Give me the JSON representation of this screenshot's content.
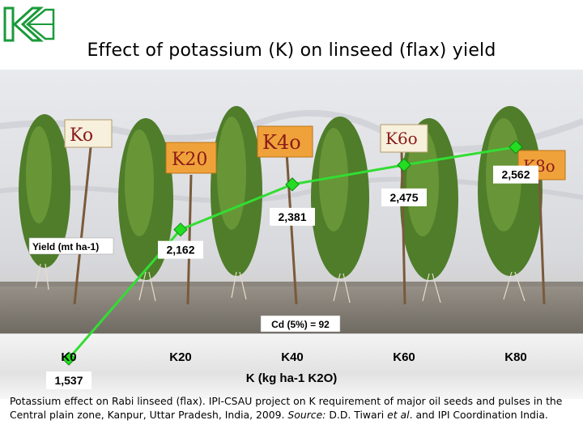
{
  "slide": {
    "title": "Effect of potassium (K) on linseed (flax) yield",
    "caption": {
      "part1": "Potassium effect on Rabi linseed (flax). IPI-CSAU project on K requirement of major oil seeds and pulses in the Central plain zone, Kanpur, Uttar Pradesh, India, 2009. ",
      "source_label": "Source:",
      "part2": " D.D. Tiwari ",
      "etal": "et al",
      "part3": ". and IPI Coordination India."
    },
    "logo_icon": "ipi-k-logo-icon"
  },
  "photo": {
    "signs": [
      "Ko",
      "K20",
      "K4o",
      "K6o",
      "K8o"
    ]
  },
  "chart_data": {
    "type": "line",
    "categories": [
      "K0",
      "K20",
      "K40",
      "K60",
      "K80"
    ],
    "series": [
      {
        "values": [
          1537,
          2162,
          2381,
          2475,
          2562
        ]
      }
    ],
    "data_labels": [
      "1,537",
      "2,162",
      "2,381",
      "2,475",
      "2,562"
    ],
    "xlabel": "K (kg ha-1 K2O)",
    "ylabel": "Yield (mt ha-1)",
    "annotation": "Cd (5%) = 92",
    "ylim": [
      1000,
      3000
    ],
    "grid": false,
    "line_color": "#33dd33",
    "marker_color": "#22dd22"
  }
}
